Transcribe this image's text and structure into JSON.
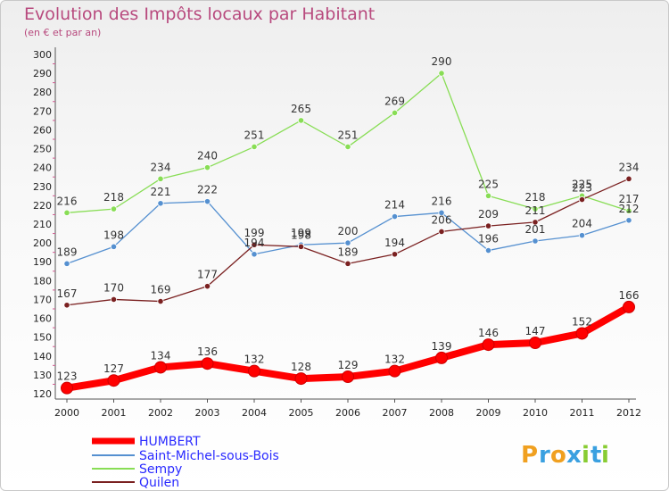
{
  "chart_data": {
    "type": "line",
    "title": "Evolution des Impôts locaux par Habitant",
    "subtitle": "(en € et par an)",
    "xlabel": "",
    "ylabel": "",
    "categories": [
      "2000",
      "2001",
      "2002",
      "2003",
      "2004",
      "2005",
      "2006",
      "2007",
      "2008",
      "2009",
      "2010",
      "2011",
      "2012"
    ],
    "ylim": [
      120,
      300
    ],
    "yticks": [
      120,
      130,
      140,
      150,
      160,
      170,
      180,
      190,
      200,
      210,
      220,
      230,
      240,
      250,
      260,
      270,
      280,
      290,
      300
    ],
    "grid": false,
    "legend_position": "bottom-left",
    "series": [
      {
        "name": "HUMBERT",
        "color": "#ff0000",
        "legend_color": "#2a2aff",
        "values": [
          123,
          127,
          134,
          136,
          132,
          128,
          129,
          132,
          139,
          146,
          147,
          152,
          166
        ]
      },
      {
        "name": "Saint-Michel-sous-Bois",
        "color": "#5590d0",
        "legend_color": "#2a2aff",
        "values": [
          189,
          198,
          221,
          222,
          194,
          199,
          200,
          214,
          216,
          196,
          201,
          204,
          212
        ]
      },
      {
        "name": "Sempy",
        "color": "#88dd55",
        "legend_color": "#2a2aff",
        "values": [
          216,
          218,
          234,
          240,
          251,
          265,
          251,
          269,
          290,
          225,
          218,
          225,
          217
        ]
      },
      {
        "name": "Quilen",
        "color": "#7a2020",
        "legend_color": "#2a2aff",
        "values": [
          167,
          170,
          169,
          177,
          199,
          198,
          189,
          194,
          206,
          209,
          211,
          223,
          234
        ]
      }
    ]
  },
  "brand": {
    "letters": [
      "P",
      "r",
      "o",
      "x",
      "i",
      "t",
      "i"
    ],
    "colors": [
      "#f0a020",
      "#3aa0e0",
      "#f0a020",
      "#3aa0e0",
      "#88cc33",
      "#3aa0e0",
      "#88cc33"
    ]
  }
}
